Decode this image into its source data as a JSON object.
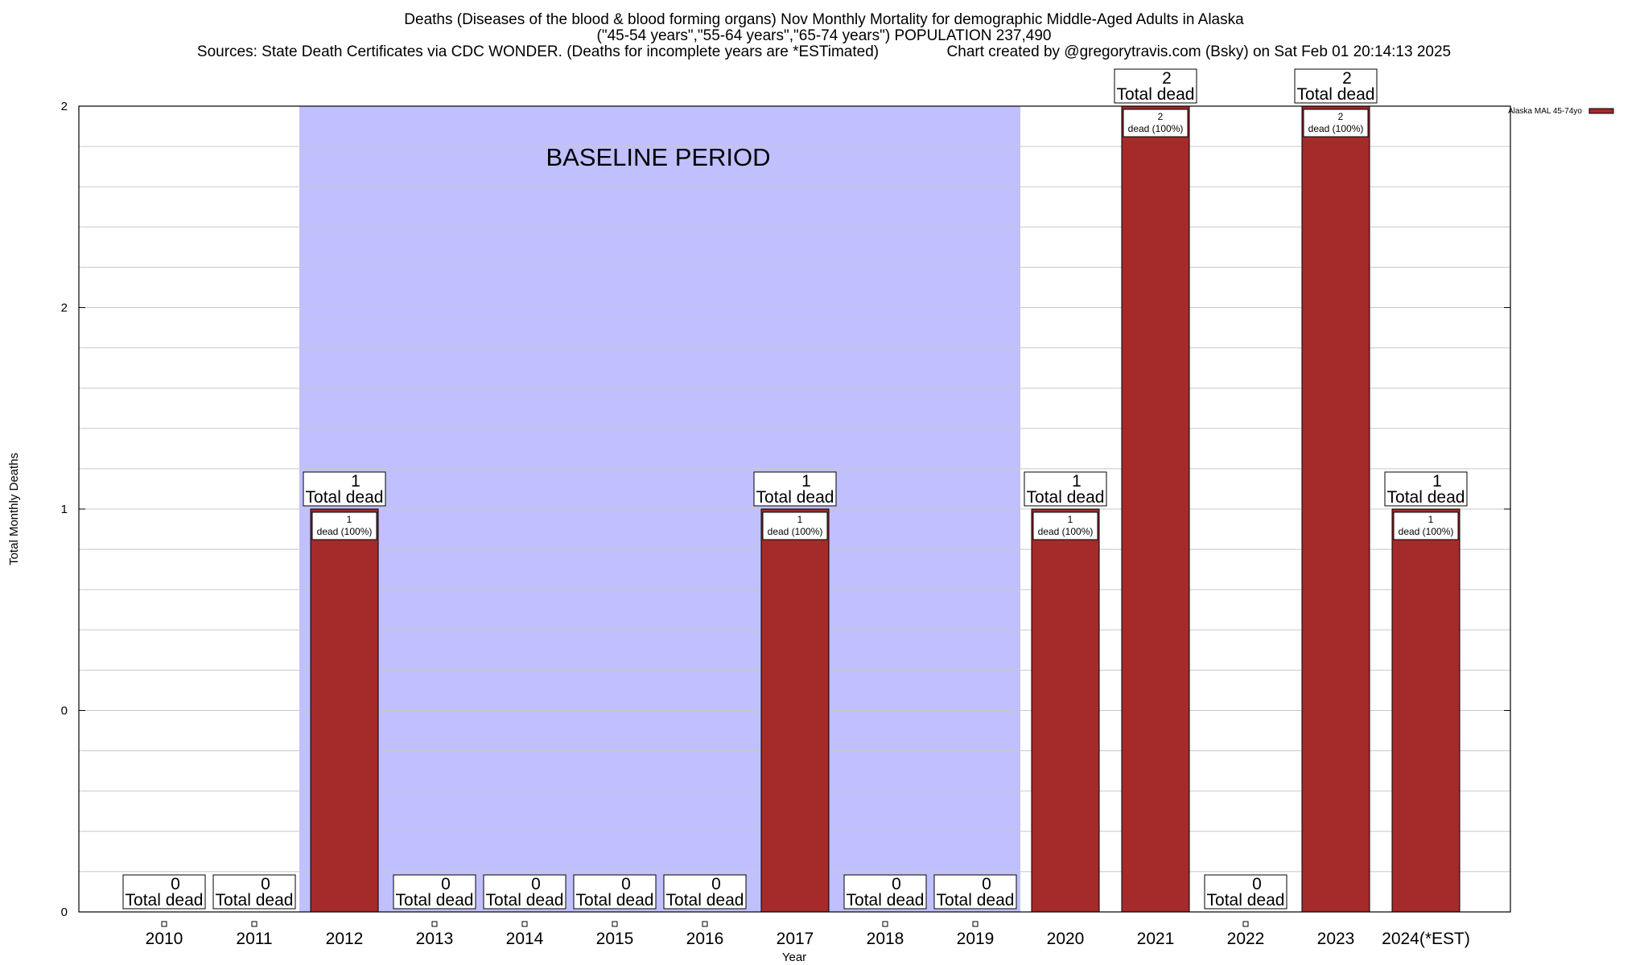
{
  "chart_data": {
    "type": "bar",
    "title_lines": [
      "Deaths (Diseases of the blood & blood forming organs) Nov Monthly Mortality for demographic Middle-Aged Adults in Alaska",
      "(\"45-54 years\",\"55-64 years\",\"65-74 years\") POPULATION 237,490",
      "Sources: State Death Certificates via CDC WONDER. (Deaths for incomplete years are *ESTimated)                Chart created by @gregorytravis.com (Bsky) on Sat Feb 01 20:14:13 2025"
    ],
    "xlabel": "Year",
    "ylabel": "Total Monthly Deaths",
    "categories": [
      "2010",
      "2011",
      "2012",
      "2013",
      "2014",
      "2015",
      "2016",
      "2017",
      "2018",
      "2019",
      "2020",
      "2021",
      "2022",
      "2023",
      "2024(*EST)"
    ],
    "series": [
      {
        "name": "Alaska MAL 45-74yo",
        "values": [
          0,
          0,
          1,
          0,
          0,
          0,
          0,
          1,
          0,
          0,
          1,
          2,
          0,
          2,
          1
        ]
      }
    ],
    "ylim": [
      0,
      2
    ],
    "ytick_labels": [
      "0",
      "0",
      "1",
      "2",
      "2"
    ],
    "total_label_suffix": "Total dead",
    "inner_label_suffix": "dead (100%)",
    "baseline": {
      "label": "BASELINE PERIOD",
      "start": "2012",
      "end": "2019"
    },
    "legend_position": "top-right",
    "grid": true,
    "colors": {
      "bar": "#a52a2a",
      "baseline": "#c0c0ff",
      "grid": "#c8c8c8"
    }
  }
}
